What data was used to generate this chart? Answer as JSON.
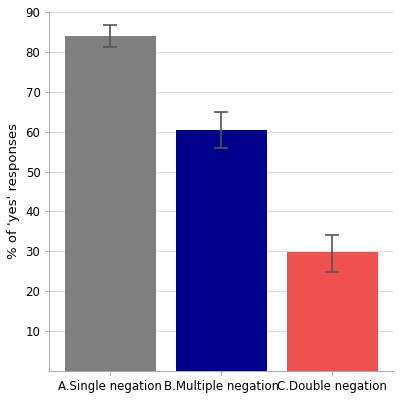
{
  "categories": [
    "A.Single negation",
    "B.Multiple negation",
    "C.Double negation"
  ],
  "values": [
    84.0,
    60.5,
    29.8
  ],
  "errors_upper": [
    2.8,
    4.5,
    4.2
  ],
  "errors_lower": [
    2.8,
    4.5,
    5.0
  ],
  "bar_colors": [
    "#808080",
    "#00008B",
    "#F05050"
  ],
  "ylabel": "% of 'yes' responses",
  "ylim": [
    0,
    90
  ],
  "yticks": [
    10,
    20,
    30,
    40,
    50,
    60,
    70,
    80,
    90
  ],
  "bar_width": 0.82,
  "background_color": "#ffffff",
  "grid_color": "#dddddd",
  "error_capsize": 5,
  "error_color": "#555555",
  "error_linewidth": 1.2,
  "tick_labelsize": 8.5,
  "ylabel_fontsize": 9.5
}
